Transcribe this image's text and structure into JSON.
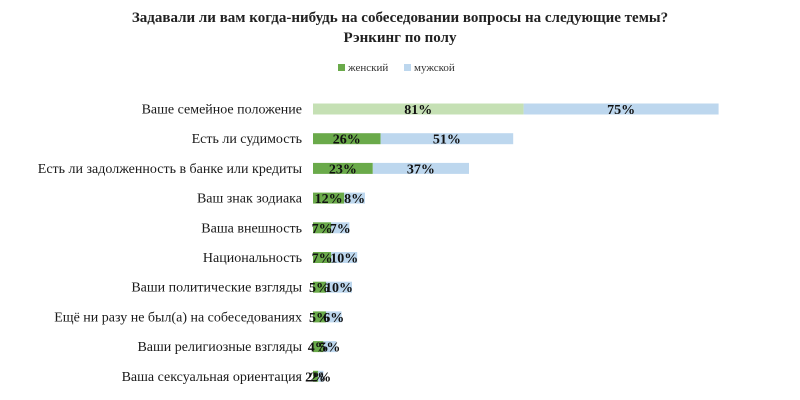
{
  "chart_data": {
    "type": "bar",
    "orientation": "horizontal",
    "stacked": true,
    "title": "Задавали ли вам когда-нибудь на собеседовании вопросы на следующие темы?",
    "subtitle": "Рэнкинг по полу",
    "legend_position": "top",
    "grid": false,
    "value_suffix": "%",
    "categories": [
      "Ваше семейное положение",
      "Есть ли судимость",
      "Есть ли задолженность в банке или кредиты",
      "Ваш знак зодиака",
      "Ваша внешность",
      "Национальность",
      "Ваши политические взгляды",
      "Ещё ни разу не был(а) на собеседованиях",
      "Ваши религиозные взгляды",
      "Ваша сексуальная ориентация"
    ],
    "series": [
      {
        "name": "женский",
        "color": "#6aaa4a",
        "first_bar_color": "#c5e0b4",
        "values": [
          81,
          26,
          23,
          12,
          7,
          7,
          5,
          5,
          4,
          2
        ]
      },
      {
        "name": "мужской",
        "color": "#bdd7ee",
        "values": [
          75,
          51,
          37,
          8,
          7,
          10,
          10,
          6,
          5,
          2
        ]
      }
    ]
  }
}
